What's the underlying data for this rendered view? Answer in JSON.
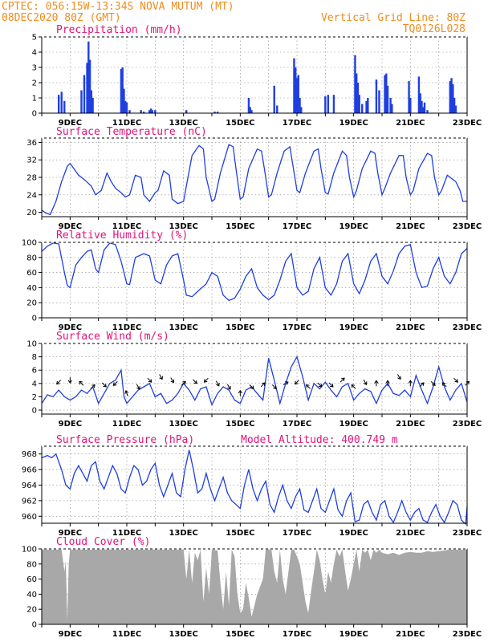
{
  "header": {
    "line1_left": "CPTEC:   056:15W-13:34S   NOVA MUTUM (MT)",
    "line2_left": "08DEC2020 80Z (GMT)",
    "line1_right": "Vertical Grid Line: 80Z",
    "line2_right": "TQ0126L028"
  },
  "colors": {
    "header": "#f08c1e",
    "title": "#e0147a",
    "series": "#1f3fe0",
    "cloud": "#a8a8a8",
    "grid": "#888888"
  },
  "x_axis": {
    "start_day": 8,
    "end_day": 23,
    "tick_labels": [
      "9DEC",
      "11DEC",
      "13DEC",
      "15DEC",
      "17DEC",
      "19DEC",
      "21DEC",
      "23DEC"
    ],
    "tick_days": [
      9,
      11,
      13,
      15,
      17,
      19,
      21,
      23
    ]
  },
  "chart_data": [
    {
      "type": "bar",
      "title": "Precipitation (mm/h)",
      "ylim": [
        0,
        5
      ],
      "yticks": [
        0,
        1,
        2,
        3,
        4,
        5
      ],
      "grid": true,
      "x": [
        8.6,
        8.7,
        8.8,
        9.4,
        9.5,
        9.6,
        9.65,
        9.7,
        9.75,
        9.8,
        10.8,
        10.85,
        10.9,
        10.95,
        11.0,
        11.1,
        11.5,
        11.6,
        11.8,
        11.85,
        11.9,
        12.0,
        13.1,
        14.1,
        14.2,
        15.3,
        15.35,
        15.4,
        16.2,
        16.3,
        16.9,
        16.95,
        17.0,
        17.05,
        17.1,
        17.15,
        18.0,
        18.1,
        18.3,
        19.05,
        19.1,
        19.15,
        19.2,
        19.3,
        19.45,
        19.5,
        19.8,
        19.9,
        20.1,
        20.15,
        20.2,
        20.3,
        20.35,
        20.95,
        21.0,
        21.3,
        21.35,
        21.4,
        21.45,
        21.5,
        21.6,
        22.4,
        22.45,
        22.5,
        22.55,
        22.6
      ],
      "values": [
        1.2,
        1.4,
        0.8,
        1.5,
        2.5,
        3.3,
        4.7,
        3.5,
        1.5,
        1.0,
        2.9,
        3.0,
        1.6,
        0.8,
        0.7,
        0.2,
        0.2,
        0.1,
        0.2,
        0.3,
        0.2,
        0.2,
        0.2,
        0.1,
        0.1,
        1.0,
        0.4,
        0.2,
        1.8,
        0.5,
        3.6,
        3.0,
        2.3,
        2.5,
        1.0,
        0.4,
        1.1,
        1.2,
        1.2,
        3.8,
        2.6,
        2.0,
        1.2,
        0.6,
        0.8,
        1.0,
        2.2,
        1.5,
        2.5,
        2.6,
        1.8,
        1.0,
        0.6,
        2.1,
        1.0,
        2.4,
        1.3,
        0.8,
        0.4,
        0.7,
        0.2,
        2.1,
        2.3,
        1.9,
        1.0,
        0.5
      ]
    },
    {
      "type": "line",
      "title": "Surface Temperature (nC)",
      "ylim": [
        19,
        37
      ],
      "yticks": [
        20,
        24,
        28,
        32,
        36
      ],
      "grid": true,
      "x": [
        8.0,
        8.15,
        8.3,
        8.5,
        8.7,
        8.9,
        9.0,
        9.3,
        9.5,
        9.75,
        9.9,
        10.1,
        10.3,
        10.45,
        10.6,
        10.8,
        10.95,
        11.1,
        11.3,
        11.5,
        11.6,
        11.8,
        12.0,
        12.1,
        12.3,
        12.5,
        12.6,
        12.8,
        13.0,
        13.1,
        13.3,
        13.55,
        13.7,
        13.8,
        14.0,
        14.1,
        14.3,
        14.6,
        14.75,
        14.85,
        15.0,
        15.1,
        15.3,
        15.6,
        15.75,
        15.85,
        16.0,
        16.1,
        16.3,
        16.55,
        16.75,
        16.85,
        17.0,
        17.1,
        17.3,
        17.6,
        17.75,
        17.85,
        18.0,
        18.1,
        18.3,
        18.6,
        18.75,
        18.85,
        19.0,
        19.1,
        19.3,
        19.6,
        19.75,
        19.85,
        20.0,
        20.1,
        20.3,
        20.6,
        20.75,
        20.85,
        21.0,
        21.1,
        21.3,
        21.6,
        21.75,
        21.85,
        22.0,
        22.1,
        22.3,
        22.6,
        22.75,
        22.85,
        23.0
      ],
      "values": [
        20.5,
        19.8,
        19.5,
        22.5,
        27,
        30.5,
        31.2,
        28.5,
        27.5,
        26,
        24,
        25,
        29,
        27,
        25.5,
        24.5,
        23.5,
        24,
        28.5,
        28,
        24,
        22.5,
        24.5,
        25,
        29.5,
        28.5,
        23,
        22,
        22.5,
        26,
        33,
        35.3,
        34.5,
        28,
        22.5,
        23,
        29,
        35.5,
        35,
        30,
        23,
        23.5,
        30,
        34.5,
        34,
        30,
        23.5,
        24,
        29,
        34,
        35,
        31,
        25,
        24.5,
        29,
        34,
        34.5,
        30,
        24.5,
        24.2,
        29,
        34,
        33,
        28,
        23.5,
        25,
        30,
        34,
        33.5,
        29,
        24,
        25.5,
        29,
        33,
        33,
        28,
        24,
        25,
        30,
        33.5,
        33,
        28,
        24,
        25,
        28.5,
        27,
        25,
        22.5,
        22.5
      ]
    },
    {
      "type": "line",
      "title": "Relative Humidity (%)",
      "ylim": [
        0,
        100
      ],
      "yticks": [
        0,
        20,
        40,
        60,
        80,
        100
      ],
      "grid": true,
      "x": [
        8.0,
        8.2,
        8.4,
        8.6,
        8.8,
        8.9,
        9.0,
        9.2,
        9.4,
        9.6,
        9.75,
        9.9,
        10.0,
        10.2,
        10.4,
        10.6,
        10.8,
        11.0,
        11.1,
        11.3,
        11.6,
        11.8,
        12.0,
        12.2,
        12.4,
        12.6,
        12.8,
        13.0,
        13.1,
        13.3,
        13.5,
        13.8,
        14.0,
        14.2,
        14.4,
        14.6,
        14.8,
        15.0,
        15.2,
        15.4,
        15.6,
        15.8,
        16.0,
        16.2,
        16.4,
        16.6,
        16.8,
        17.0,
        17.2,
        17.4,
        17.6,
        17.8,
        18.0,
        18.2,
        18.4,
        18.6,
        18.8,
        19.0,
        19.2,
        19.4,
        19.6,
        19.8,
        20.0,
        20.2,
        20.4,
        20.6,
        20.8,
        21.0,
        21.2,
        21.4,
        21.6,
        21.8,
        22.0,
        22.2,
        22.4,
        22.6,
        22.8,
        23.0
      ],
      "values": [
        88,
        95,
        99,
        98,
        60,
        43,
        40,
        70,
        80,
        88,
        90,
        65,
        60,
        90,
        99,
        97,
        75,
        45,
        44,
        80,
        85,
        82,
        50,
        45,
        70,
        82,
        85,
        50,
        30,
        28,
        35,
        45,
        60,
        55,
        30,
        23,
        26,
        38,
        55,
        65,
        40,
        30,
        24,
        30,
        50,
        75,
        85,
        40,
        30,
        35,
        65,
        80,
        40,
        30,
        45,
        75,
        85,
        45,
        32,
        50,
        75,
        85,
        55,
        45,
        62,
        85,
        95,
        97,
        60,
        40,
        42,
        65,
        80,
        55,
        45,
        60,
        85,
        92
      ]
    },
    {
      "type": "line",
      "title": "Surface Wind (m/s)",
      "ylim": [
        -0.6,
        10
      ],
      "yticks": [
        0,
        2,
        4,
        6,
        8,
        10
      ],
      "grid": true,
      "x": [
        8.0,
        8.2,
        8.4,
        8.6,
        8.8,
        9.0,
        9.2,
        9.4,
        9.6,
        9.8,
        10.0,
        10.2,
        10.4,
        10.6,
        10.8,
        10.9,
        11.0,
        11.2,
        11.4,
        11.6,
        11.8,
        12.0,
        12.2,
        12.4,
        12.6,
        12.8,
        13.0,
        13.2,
        13.4,
        13.6,
        13.8,
        14.0,
        14.2,
        14.4,
        14.6,
        14.8,
        15.0,
        15.2,
        15.4,
        15.6,
        15.8,
        16.0,
        16.2,
        16.4,
        16.6,
        16.8,
        17.0,
        17.2,
        17.4,
        17.6,
        17.8,
        18.0,
        18.2,
        18.4,
        18.6,
        18.8,
        19.0,
        19.2,
        19.4,
        19.6,
        19.8,
        20.0,
        20.2,
        20.4,
        20.6,
        20.8,
        21.0,
        21.2,
        21.4,
        21.6,
        21.8,
        22.0,
        22.2,
        22.4,
        22.6,
        22.8,
        23.0
      ],
      "values": [
        1,
        2.3,
        2,
        3,
        2,
        1.5,
        2,
        3,
        2.5,
        3.5,
        1,
        2.5,
        4,
        4.5,
        6,
        2,
        1,
        2,
        3,
        3.5,
        4,
        2,
        2.5,
        1,
        1.5,
        2.5,
        4,
        3,
        1.5,
        3.2,
        3.5,
        0.8,
        2.5,
        3.5,
        3,
        1.5,
        1,
        3,
        3.5,
        2.5,
        1.5,
        7.8,
        4.5,
        1,
        4,
        6.5,
        8,
        5,
        1.5,
        4,
        3.2,
        4.2,
        3,
        2,
        3.5,
        4,
        1.5,
        2.5,
        3.2,
        2.8,
        1,
        3,
        4,
        2.5,
        2.2,
        3,
        2,
        5.2,
        3,
        1,
        3.5,
        6.5,
        3.5,
        1.5,
        3,
        4,
        1.2
      ]
    },
    {
      "type": "line",
      "title": "Surface Pressure (hPa)",
      "annotation": "Model Altitude: 400.749 m",
      "ylim": [
        959.1,
        969
      ],
      "yticks": [
        960,
        962,
        964,
        966,
        968
      ],
      "grid": true,
      "x": [
        8.0,
        8.2,
        8.35,
        8.5,
        8.7,
        8.85,
        9.0,
        9.15,
        9.3,
        9.45,
        9.6,
        9.75,
        9.9,
        10.05,
        10.2,
        10.35,
        10.5,
        10.65,
        10.8,
        10.95,
        11.1,
        11.25,
        11.4,
        11.55,
        11.7,
        11.85,
        12.0,
        12.15,
        12.3,
        12.45,
        12.6,
        12.75,
        12.9,
        13.05,
        13.2,
        13.35,
        13.5,
        13.65,
        13.8,
        13.95,
        14.1,
        14.25,
        14.4,
        14.55,
        14.7,
        14.85,
        15.0,
        15.15,
        15.3,
        15.45,
        15.6,
        15.75,
        15.9,
        16.05,
        16.2,
        16.35,
        16.5,
        16.65,
        16.8,
        16.95,
        17.1,
        17.25,
        17.4,
        17.55,
        17.7,
        17.85,
        18.0,
        18.15,
        18.3,
        18.45,
        18.6,
        18.75,
        18.9,
        19.05,
        19.2,
        19.35,
        19.5,
        19.65,
        19.8,
        19.95,
        20.1,
        20.25,
        20.4,
        20.55,
        20.7,
        20.85,
        21.0,
        21.15,
        21.3,
        21.45,
        21.6,
        21.75,
        21.9,
        22.05,
        22.2,
        22.35,
        22.5,
        22.65,
        22.8,
        22.95,
        23.0
      ],
      "values": [
        967.5,
        967.8,
        967.5,
        968,
        966,
        964,
        963.5,
        965.5,
        966.5,
        965.5,
        964.5,
        966.5,
        967,
        964.5,
        963.5,
        965,
        966.5,
        965.5,
        963.5,
        963,
        965,
        966.5,
        966,
        964,
        964.5,
        966,
        966.8,
        964,
        962.5,
        964,
        965.5,
        963,
        962.5,
        966,
        968.5,
        966,
        963,
        963.5,
        965.5,
        963.5,
        962,
        963.5,
        965,
        963,
        962,
        961.5,
        961,
        964,
        966,
        963.5,
        962,
        963.5,
        964.5,
        961.5,
        960.5,
        962.5,
        964,
        962,
        961,
        962.5,
        963.5,
        960.8,
        960.5,
        962,
        963.5,
        961,
        960.5,
        962,
        963.5,
        960.8,
        960,
        962,
        963,
        959.3,
        959.5,
        961.5,
        962,
        960.5,
        959.5,
        961.5,
        962,
        960,
        959.2,
        960.5,
        962,
        960.5,
        959.5,
        960.5,
        961,
        959.5,
        959.2,
        960.5,
        961.5,
        960,
        959.2,
        960.5,
        962,
        961.5,
        959.5,
        959,
        961.2
      ]
    },
    {
      "type": "area",
      "title": "Cloud Cover (%)",
      "ylim": [
        0,
        100
      ],
      "yticks": [
        0,
        20,
        40,
        60,
        80,
        100
      ],
      "grid": true,
      "x": [
        8.0,
        8.1,
        8.2,
        8.3,
        8.4,
        8.5,
        8.6,
        8.7,
        8.8,
        8.85,
        8.9,
        8.95,
        9.0,
        9.2,
        9.5,
        10.0,
        10.5,
        11.0,
        11.5,
        12.0,
        12.5,
        12.9,
        13.0,
        13.1,
        13.2,
        13.3,
        13.4,
        13.5,
        13.6,
        13.7,
        13.8,
        13.9,
        14.0,
        14.2,
        14.3,
        14.4,
        14.5,
        14.6,
        14.7,
        14.8,
        14.9,
        15.0,
        15.1,
        15.2,
        15.3,
        15.4,
        15.5,
        15.6,
        15.8,
        15.9,
        16.0,
        16.1,
        16.2,
        16.3,
        16.4,
        16.5,
        16.6,
        16.7,
        16.8,
        16.9,
        17.0,
        17.1,
        17.2,
        17.3,
        17.4,
        17.5,
        17.6,
        17.7,
        17.8,
        17.9,
        18.0,
        18.1,
        18.2,
        18.3,
        18.4,
        18.5,
        18.6,
        18.7,
        18.8,
        18.9,
        19.0,
        19.1,
        19.2,
        19.3,
        19.4,
        19.5,
        19.6,
        19.7,
        19.8,
        19.9,
        20.0,
        20.2,
        20.4,
        20.6,
        20.8,
        21.0,
        21.2,
        21.4,
        21.6,
        21.8,
        22.0,
        22.2,
        22.4,
        22.6,
        22.8,
        23.0
      ],
      "values": [
        99,
        99,
        99,
        99,
        99,
        99,
        99,
        99,
        70,
        85,
        5,
        80,
        99,
        99,
        99,
        99,
        99,
        99,
        99,
        99,
        99,
        99,
        99,
        60,
        99,
        55,
        95,
        85,
        99,
        30,
        75,
        40,
        99,
        98,
        55,
        20,
        70,
        25,
        99,
        90,
        40,
        15,
        20,
        55,
        35,
        10,
        25,
        40,
        60,
        99,
        99,
        99,
        70,
        55,
        99,
        60,
        40,
        70,
        99,
        99,
        90,
        80,
        55,
        30,
        15,
        45,
        70,
        99,
        85,
        60,
        40,
        70,
        55,
        80,
        99,
        90,
        99,
        70,
        45,
        60,
        80,
        99,
        70,
        99,
        95,
        99,
        85,
        99,
        95,
        99,
        95,
        93,
        95,
        92,
        95,
        96,
        95,
        95,
        97,
        96,
        97,
        98,
        99,
        99,
        99,
        99
      ]
    }
  ],
  "wind_arrows": {
    "x": [
      8.6,
      9.0,
      9.4,
      9.8,
      10.2,
      10.6,
      11.0,
      11.4,
      11.8,
      12.2,
      12.6,
      13.0,
      13.4,
      13.8,
      14.2,
      14.6,
      15.0,
      15.4,
      15.8,
      16.2,
      16.6,
      17.0,
      17.4,
      17.8,
      18.2,
      18.6,
      19.0,
      19.4,
      19.8,
      20.2,
      20.6,
      21.0,
      21.4,
      21.8,
      22.2,
      22.6,
      23.0
    ],
    "y": [
      4.2,
      4.5,
      4.0,
      3.5,
      3.8,
      4.0,
      2.5,
      3.5,
      4.5,
      5.0,
      4.5,
      4.0,
      4.3,
      4.5,
      4.0,
      3.5,
      2.5,
      3.5,
      3.8,
      3.5,
      4.0,
      4.2,
      3.5,
      3.8,
      3.8,
      4.5,
      3.5,
      4.2,
      4.0,
      4.0,
      5.0,
      4.0,
      3.8,
      4.0,
      3.8,
      4.5,
      4.0
    ],
    "direction_deg": [
      225,
      270,
      135,
      45,
      315,
      225,
      110,
      300,
      315,
      300,
      300,
      45,
      315,
      225,
      300,
      300,
      90,
      315,
      45,
      315,
      30,
      225,
      135,
      315,
      315,
      45,
      135,
      300,
      90,
      90,
      300,
      90,
      45,
      315,
      135,
      315,
      45
    ]
  }
}
